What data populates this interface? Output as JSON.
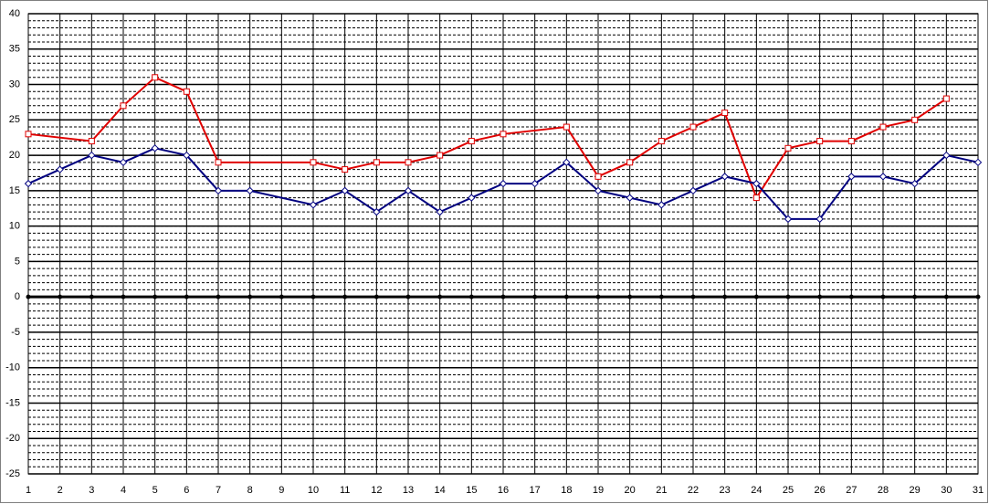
{
  "chart_data": {
    "type": "line",
    "xlim": [
      1,
      31
    ],
    "xticks": [
      1,
      2,
      3,
      4,
      5,
      6,
      7,
      8,
      9,
      10,
      11,
      12,
      13,
      14,
      15,
      16,
      17,
      18,
      19,
      20,
      21,
      22,
      23,
      24,
      25,
      26,
      27,
      28,
      29,
      30,
      31
    ],
    "ylim": [
      -25,
      40
    ],
    "yticks": [
      -25,
      -20,
      -15,
      -10,
      -5,
      0,
      5,
      10,
      15,
      20,
      25,
      30,
      35,
      40
    ],
    "minor_step": 1,
    "grid": true,
    "series": [
      {
        "color": "#e00000",
        "marker": "square",
        "x": [
          1,
          3,
          4,
          5,
          6,
          7,
          10,
          11,
          12,
          13,
          14,
          15,
          16,
          18,
          19,
          20,
          21,
          22,
          23,
          24,
          25,
          26,
          27,
          28,
          29,
          30
        ],
        "values": [
          23,
          22,
          27,
          31,
          29,
          19,
          19,
          18,
          19,
          19,
          20,
          22,
          23,
          24,
          17,
          19,
          22,
          24,
          26,
          14,
          21,
          22,
          22,
          24,
          25,
          28
        ]
      },
      {
        "color": "#000080",
        "marker": "diamond",
        "x": [
          1,
          2,
          3,
          4,
          5,
          6,
          7,
          8,
          10,
          11,
          12,
          13,
          14,
          15,
          16,
          17,
          18,
          19,
          20,
          21,
          22,
          23,
          24,
          25,
          26,
          27,
          28,
          29,
          30,
          31
        ],
        "values": [
          16,
          18,
          20,
          19,
          21,
          20,
          15,
          15,
          13,
          15,
          12,
          15,
          12,
          14,
          16,
          16,
          19,
          15,
          14,
          13,
          15,
          17,
          16,
          11,
          11,
          17,
          17,
          16,
          20,
          19
        ]
      }
    ]
  }
}
